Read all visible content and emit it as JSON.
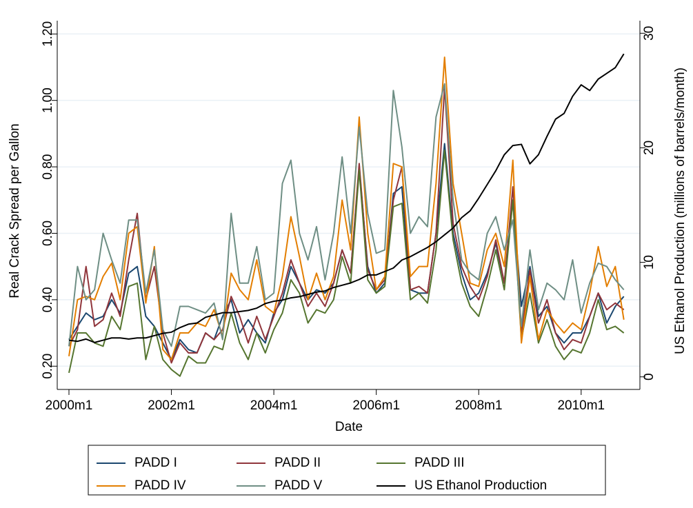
{
  "chart_data": {
    "type": "line",
    "xlabel": "Date",
    "ylabel": "Real Crack Spread per Gallon",
    "y2label": "US Ethanol Production (millions of barrels/month)",
    "x": [
      "2000m1",
      "2000m3",
      "2000m5",
      "2000m7",
      "2000m9",
      "2000m11",
      "2001m1",
      "2001m3",
      "2001m5",
      "2001m7",
      "2001m9",
      "2001m11",
      "2002m1",
      "2002m3",
      "2002m5",
      "2002m7",
      "2002m9",
      "2002m11",
      "2003m1",
      "2003m3",
      "2003m5",
      "2003m7",
      "2003m9",
      "2003m11",
      "2004m1",
      "2004m3",
      "2004m5",
      "2004m7",
      "2004m9",
      "2004m11",
      "2005m1",
      "2005m3",
      "2005m5",
      "2005m7",
      "2005m9",
      "2005m11",
      "2006m1",
      "2006m3",
      "2006m5",
      "2006m7",
      "2006m9",
      "2006m11",
      "2007m1",
      "2007m3",
      "2007m5",
      "2007m7",
      "2007m9",
      "2007m11",
      "2008m1",
      "2008m3",
      "2008m5",
      "2008m7",
      "2008m9",
      "2008m11",
      "2009m1",
      "2009m3",
      "2009m5",
      "2009m7",
      "2009m9",
      "2009m11",
      "2010m1",
      "2010m3",
      "2010m5",
      "2010m7",
      "2010m9",
      "2010m11"
    ],
    "xticks": [
      "2000m1",
      "2002m1",
      "2004m1",
      "2006m1",
      "2008m1",
      "2010m1"
    ],
    "ylim": [
      0.13,
      1.24
    ],
    "yticks": [
      {
        "value": 0.2,
        "label": "0.20"
      },
      {
        "value": 0.4,
        "label": "0.40"
      },
      {
        "value": 0.6,
        "label": "0.60"
      },
      {
        "value": 0.8,
        "label": "0.80"
      },
      {
        "value": 1.0,
        "label": "1.00"
      },
      {
        "value": 1.2,
        "label": "1.20"
      }
    ],
    "y2lim": [
      -1.1,
      31.1
    ],
    "y2ticks": [
      0,
      10,
      20,
      30
    ],
    "grid": true,
    "legend": "bottom",
    "series": [
      {
        "name": "PADD I",
        "color": "#1a476f",
        "values": [
          0.28,
          0.32,
          0.36,
          0.34,
          0.35,
          0.4,
          0.36,
          0.48,
          0.5,
          0.35,
          0.32,
          0.27,
          0.22,
          0.28,
          0.25,
          0.24,
          0.3,
          0.28,
          0.35,
          0.4,
          0.3,
          0.34,
          0.3,
          0.27,
          0.36,
          0.4,
          0.5,
          0.45,
          0.4,
          0.43,
          0.42,
          0.45,
          0.55,
          0.48,
          0.8,
          0.5,
          0.42,
          0.45,
          0.72,
          0.74,
          0.43,
          0.42,
          0.42,
          0.6,
          0.87,
          0.6,
          0.48,
          0.4,
          0.42,
          0.48,
          0.57,
          0.45,
          0.7,
          0.38,
          0.5,
          0.35,
          0.38,
          0.3,
          0.27,
          0.3,
          0.3,
          0.35,
          0.42,
          0.33,
          0.38,
          0.41
        ]
      },
      {
        "name": "PADD II",
        "color": "#90353b",
        "values": [
          0.26,
          0.31,
          0.5,
          0.32,
          0.34,
          0.42,
          0.35,
          0.52,
          0.66,
          0.4,
          0.5,
          0.3,
          0.21,
          0.27,
          0.24,
          0.24,
          0.3,
          0.28,
          0.31,
          0.41,
          0.35,
          0.27,
          0.35,
          0.28,
          0.35,
          0.42,
          0.52,
          0.45,
          0.38,
          0.42,
          0.38,
          0.45,
          0.55,
          0.48,
          0.81,
          0.49,
          0.43,
          0.46,
          0.7,
          0.8,
          0.43,
          0.44,
          0.42,
          0.6,
          1.04,
          0.63,
          0.5,
          0.44,
          0.4,
          0.47,
          0.58,
          0.45,
          0.74,
          0.3,
          0.49,
          0.33,
          0.4,
          0.3,
          0.25,
          0.28,
          0.27,
          0.35,
          0.42,
          0.37,
          0.39,
          0.37
        ]
      },
      {
        "name": "PADD III",
        "color": "#55752f",
        "values": [
          0.18,
          0.3,
          0.3,
          0.27,
          0.26,
          0.35,
          0.31,
          0.44,
          0.45,
          0.22,
          0.32,
          0.22,
          0.19,
          0.17,
          0.23,
          0.21,
          0.21,
          0.26,
          0.25,
          0.36,
          0.27,
          0.22,
          0.3,
          0.24,
          0.31,
          0.36,
          0.46,
          0.42,
          0.33,
          0.37,
          0.36,
          0.4,
          0.53,
          0.45,
          0.79,
          0.46,
          0.42,
          0.44,
          0.68,
          0.69,
          0.4,
          0.42,
          0.39,
          0.55,
          0.85,
          0.58,
          0.45,
          0.38,
          0.35,
          0.44,
          0.55,
          0.43,
          0.7,
          0.28,
          0.42,
          0.27,
          0.34,
          0.26,
          0.22,
          0.25,
          0.24,
          0.3,
          0.4,
          0.31,
          0.32,
          0.3
        ]
      },
      {
        "name": "PADD IV",
        "color": "#e37e00",
        "values": [
          0.23,
          0.4,
          0.41,
          0.4,
          0.47,
          0.51,
          0.4,
          0.6,
          0.62,
          0.39,
          0.56,
          0.25,
          0.22,
          0.3,
          0.3,
          0.33,
          0.32,
          0.37,
          0.29,
          0.48,
          0.43,
          0.4,
          0.52,
          0.38,
          0.36,
          0.47,
          0.65,
          0.53,
          0.4,
          0.48,
          0.4,
          0.47,
          0.7,
          0.55,
          0.95,
          0.6,
          0.43,
          0.47,
          0.81,
          0.8,
          0.47,
          0.5,
          0.5,
          0.75,
          1.13,
          0.75,
          0.6,
          0.45,
          0.44,
          0.55,
          0.6,
          0.5,
          0.82,
          0.27,
          0.47,
          0.28,
          0.37,
          0.33,
          0.3,
          0.33,
          0.31,
          0.42,
          0.56,
          0.44,
          0.5,
          0.34
        ]
      },
      {
        "name": "PADD V",
        "color": "#6e8e84",
        "values": [
          0.26,
          0.5,
          0.4,
          0.43,
          0.6,
          0.52,
          0.45,
          0.64,
          0.64,
          0.42,
          0.55,
          0.31,
          0.26,
          0.38,
          0.38,
          0.37,
          0.36,
          0.39,
          0.28,
          0.66,
          0.45,
          0.45,
          0.56,
          0.4,
          0.42,
          0.75,
          0.82,
          0.6,
          0.52,
          0.62,
          0.46,
          0.6,
          0.83,
          0.6,
          0.92,
          0.66,
          0.54,
          0.55,
          1.03,
          0.86,
          0.6,
          0.65,
          0.62,
          0.95,
          1.05,
          0.7,
          0.52,
          0.48,
          0.46,
          0.6,
          0.65,
          0.55,
          0.64,
          0.32,
          0.55,
          0.37,
          0.45,
          0.43,
          0.4,
          0.52,
          0.36,
          0.45,
          0.51,
          0.5,
          0.46,
          0.43
        ]
      },
      {
        "name": "US Ethanol Production",
        "color": "#000000",
        "axis": "y2",
        "values": [
          3.2,
          3.1,
          3.3,
          3.0,
          3.2,
          3.4,
          3.4,
          3.3,
          3.4,
          3.4,
          3.6,
          3.8,
          3.9,
          4.3,
          4.6,
          4.7,
          5.2,
          5.4,
          5.6,
          5.6,
          5.7,
          5.8,
          6.0,
          6.4,
          6.6,
          6.7,
          6.9,
          7.0,
          7.2,
          7.4,
          7.5,
          7.8,
          8.0,
          8.2,
          8.5,
          8.9,
          8.9,
          9.2,
          9.5,
          10.2,
          10.5,
          10.9,
          11.3,
          11.8,
          12.4,
          13.0,
          13.9,
          14.5,
          15.6,
          16.8,
          18.0,
          19.4,
          20.2,
          20.3,
          18.6,
          19.4,
          21.0,
          22.5,
          23.0,
          24.5,
          25.5,
          25.0,
          26.0,
          26.5,
          27.0,
          28.2
        ]
      }
    ]
  }
}
